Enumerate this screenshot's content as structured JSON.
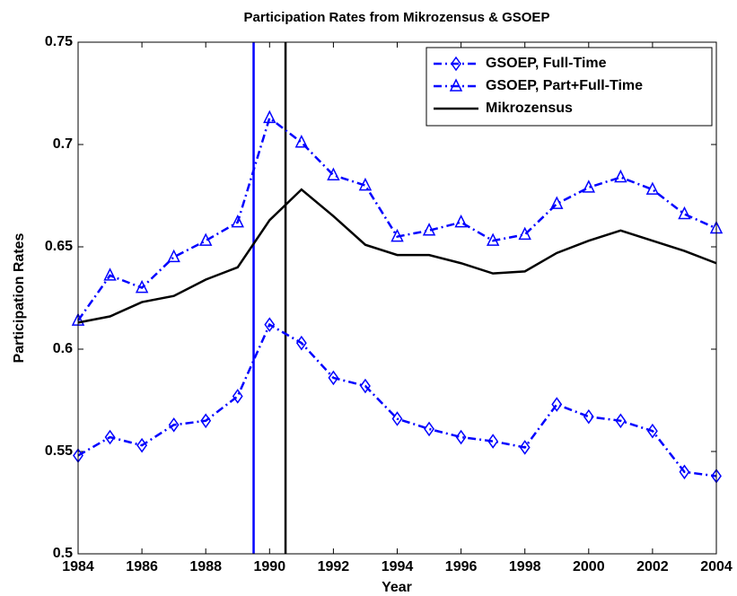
{
  "chart_data": {
    "type": "line",
    "title": "Participation Rates from Mikrozensus & GSOEP",
    "x_label": "Year",
    "y_label": "Participation Rates",
    "x": [
      1984,
      1985,
      1986,
      1987,
      1988,
      1989,
      1990,
      1991,
      1992,
      1993,
      1994,
      1995,
      1996,
      1997,
      1998,
      1999,
      2000,
      2001,
      2002,
      2003,
      2004
    ],
    "series": [
      {
        "name": "GSOEP, Full-Time",
        "color": "#0000ff",
        "linestyle": "dashdot",
        "marker": "diamond",
        "values": [
          0.548,
          0.557,
          0.553,
          0.563,
          0.565,
          0.577,
          0.612,
          0.603,
          0.586,
          0.582,
          0.566,
          0.561,
          0.557,
          0.555,
          0.552,
          0.573,
          0.567,
          0.565,
          0.56,
          0.54,
          0.538
        ]
      },
      {
        "name": "GSOEP, Part+Full-Time",
        "color": "#0000ff",
        "linestyle": "dashdot",
        "marker": "triangle",
        "values": [
          0.614,
          0.636,
          0.63,
          0.645,
          0.653,
          0.662,
          0.713,
          0.701,
          0.685,
          0.68,
          0.655,
          0.658,
          0.662,
          0.653,
          0.656,
          0.671,
          0.679,
          0.684,
          0.678,
          0.666,
          0.659
        ]
      },
      {
        "name": "Mikrozensus",
        "color": "#000000",
        "linestyle": "solid",
        "marker": "none",
        "values": [
          0.613,
          0.616,
          0.623,
          0.626,
          0.634,
          0.64,
          0.663,
          0.678,
          0.665,
          0.651,
          0.646,
          0.646,
          0.642,
          0.637,
          0.638,
          0.647,
          0.653,
          0.658,
          0.653,
          0.648,
          0.642
        ]
      }
    ],
    "vlines": [
      {
        "x": 1989.5,
        "color": "#0000ff"
      },
      {
        "x": 1990.5,
        "color": "#000000"
      }
    ],
    "xlim": [
      1984,
      2004
    ],
    "xticks": [
      1984,
      1986,
      1988,
      1990,
      1992,
      1994,
      1996,
      1998,
      2000,
      2002,
      2004
    ],
    "ylim": [
      0.5,
      0.75
    ],
    "yticks": [
      0.5,
      0.55,
      0.6,
      0.65,
      0.7,
      0.75
    ],
    "legend": "top-right",
    "grid": false
  }
}
